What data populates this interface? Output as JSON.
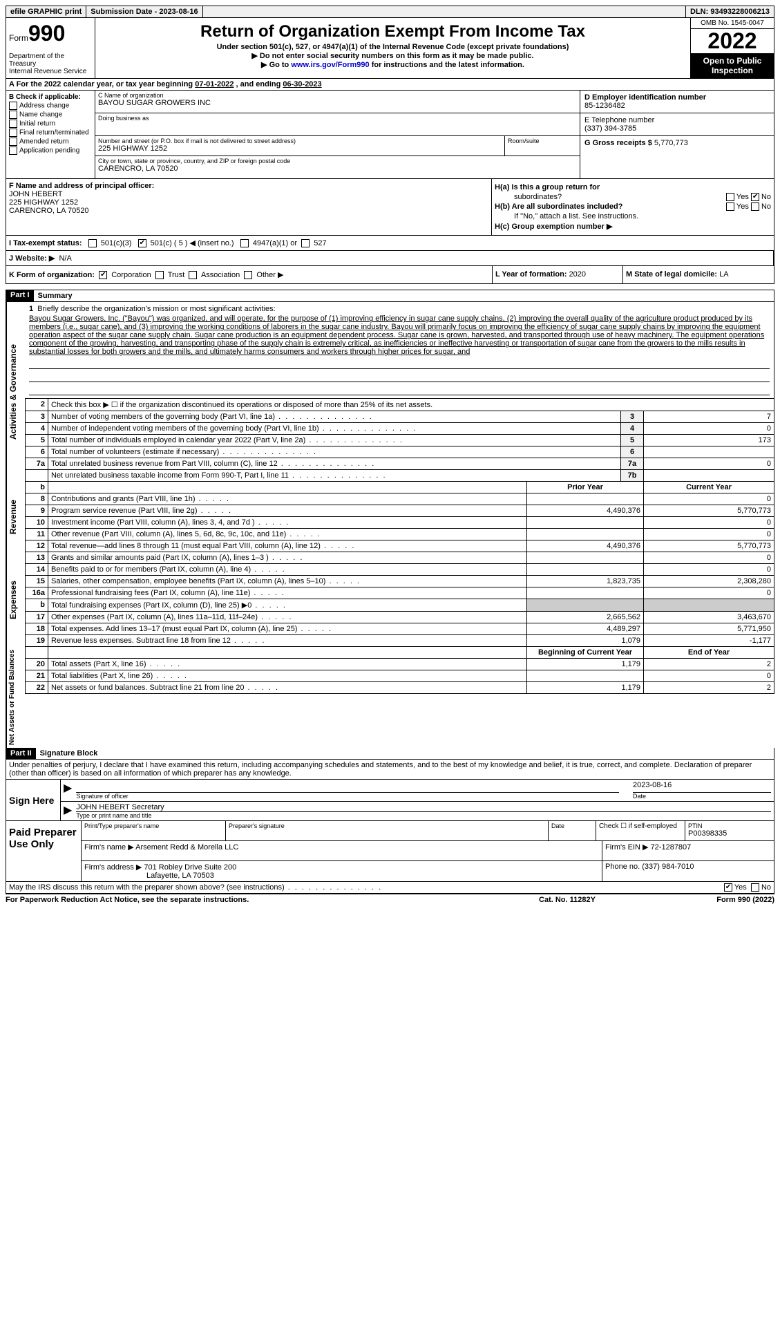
{
  "topbar": {
    "efile": "efile GRAPHIC print",
    "submission_label": "Submission Date - ",
    "submission_date": "2023-08-16",
    "dln_label": "DLN: ",
    "dln": "93493228006213"
  },
  "header": {
    "form_prefix": "Form",
    "form_number": "990",
    "dept": "Department of the Treasury\nInternal Revenue Service",
    "title": "Return of Organization Exempt From Income Tax",
    "subtitle": "Under section 501(c), 527, or 4947(a)(1) of the Internal Revenue Code (except private foundations)",
    "note1": "▶ Do not enter social security numbers on this form as it may be made public.",
    "note2_pre": "▶ Go to ",
    "note2_link": "www.irs.gov/Form990",
    "note2_post": " for instructions and the latest information.",
    "omb": "OMB No. 1545-0047",
    "year": "2022",
    "inspection": "Open to Public Inspection"
  },
  "row_a": {
    "prefix": "A For the 2022 calendar year, or tax year beginning ",
    "begin": "07-01-2022",
    "mid": " , and ending ",
    "end": "06-30-2023"
  },
  "box_b": {
    "title": "B Check if applicable:",
    "items": [
      "Address change",
      "Name change",
      "Initial return",
      "Final return/terminated",
      "Amended return",
      "Application pending"
    ]
  },
  "box_c": {
    "label_name": "C Name of organization",
    "org_name": "BAYOU SUGAR GROWERS INC",
    "label_dba": "Doing business as",
    "dba": "",
    "label_street": "Number and street (or P.O. box if mail is not delivered to street address)",
    "street": "225 HIGHWAY 1252",
    "label_room": "Room/suite",
    "label_city": "City or town, state or province, country, and ZIP or foreign postal code",
    "city": "CARENCRO, LA  70520"
  },
  "box_d": {
    "label": "D Employer identification number",
    "ein": "85-1236482"
  },
  "box_e": {
    "label": "E Telephone number",
    "phone": "(337) 394-3785"
  },
  "box_g": {
    "label": "G Gross receipts $ ",
    "amount": "5,770,773"
  },
  "box_f": {
    "label": "F  Name and address of principal officer:",
    "name": "JOHN HEBERT",
    "street": "225 HIGHWAY 1252",
    "city": "CARENCRO, LA  70520"
  },
  "box_h": {
    "ha_label": "H(a)  Is this a group return for",
    "ha_sub": "subordinates?",
    "hb_label": "H(b)  Are all subordinates included?",
    "hb_note": "If \"No,\" attach a list. See instructions.",
    "hc_label": "H(c)  Group exemption number ▶",
    "yes": "Yes",
    "no": "No"
  },
  "row_i": {
    "label": "I  Tax-exempt status:",
    "opt1": "501(c)(3)",
    "opt2": "501(c) ( 5 ) ◀ (insert no.)",
    "opt3": "4947(a)(1) or",
    "opt4": "527"
  },
  "row_j": {
    "label": "J  Website: ▶",
    "value": "N/A"
  },
  "row_k": {
    "label": "K Form of organization:",
    "opts": [
      "Corporation",
      "Trust",
      "Association",
      "Other ▶"
    ],
    "l_label": "L Year of formation: ",
    "l_value": "2020",
    "m_label": "M State of legal domicile: ",
    "m_value": "LA"
  },
  "part1": {
    "header": "Part I",
    "title": "Summary",
    "side_activities": "Activities & Governance",
    "side_revenue": "Revenue",
    "side_expenses": "Expenses",
    "side_netassets": "Net Assets or Fund Balances",
    "line1_label": "Briefly describe the organization's mission or most significant activities:",
    "mission": "Bayou Sugar Growers, Inc. (\"Bayou\") was organized, and will operate, for the purpose of (1) improving efficiency in sugar cane supply chains, (2) improving the overall quality of the agriculture product produced by its members (i.e., sugar cane), and (3) improving the working conditions of laborers in the sugar cane industry. Bayou will primarily focus on improving the efficiency of sugar cane supply chains by improving the equipment operation aspect of the sugar cane supply chain. Sugar cane production is an equipment dependent process. Sugar cane is grown, harvested, and transported through use of heavy machinery. The equipment operations component of the growing, harvesting, and transporting phase of the supply chain is extremely critical, as inefficiencies or ineffective harvesting or transportation of sugar cane from the growers to the mills results in substantial losses for both growers and the mills, and ultimately harms consumers and workers through higher prices for sugar, and",
    "line2": "Check this box ▶ ☐ if the organization discontinued its operations or disposed of more than 25% of its net assets.",
    "lines_gov": [
      {
        "n": "3",
        "desc": "Number of voting members of the governing body (Part VI, line 1a)",
        "box": "3",
        "val": "7"
      },
      {
        "n": "4",
        "desc": "Number of independent voting members of the governing body (Part VI, line 1b)",
        "box": "4",
        "val": "0"
      },
      {
        "n": "5",
        "desc": "Total number of individuals employed in calendar year 2022 (Part V, line 2a)",
        "box": "5",
        "val": "173"
      },
      {
        "n": "6",
        "desc": "Total number of volunteers (estimate if necessary)",
        "box": "6",
        "val": ""
      },
      {
        "n": "7a",
        "desc": "Total unrelated business revenue from Part VIII, column (C), line 12",
        "box": "7a",
        "val": "0"
      },
      {
        "n": "",
        "desc": "Net unrelated business taxable income from Form 990-T, Part I, line 11",
        "box": "7b",
        "val": ""
      }
    ],
    "col_prior": "Prior Year",
    "col_current": "Current Year",
    "lines_rev": [
      {
        "n": "8",
        "desc": "Contributions and grants (Part VIII, line 1h)",
        "prior": "",
        "cur": "0"
      },
      {
        "n": "9",
        "desc": "Program service revenue (Part VIII, line 2g)",
        "prior": "4,490,376",
        "cur": "5,770,773"
      },
      {
        "n": "10",
        "desc": "Investment income (Part VIII, column (A), lines 3, 4, and 7d )",
        "prior": "",
        "cur": "0"
      },
      {
        "n": "11",
        "desc": "Other revenue (Part VIII, column (A), lines 5, 6d, 8c, 9c, 10c, and 11e)",
        "prior": "",
        "cur": "0"
      },
      {
        "n": "12",
        "desc": "Total revenue—add lines 8 through 11 (must equal Part VIII, column (A), line 12)",
        "prior": "4,490,376",
        "cur": "5,770,773"
      }
    ],
    "lines_exp": [
      {
        "n": "13",
        "desc": "Grants and similar amounts paid (Part IX, column (A), lines 1–3 )",
        "prior": "",
        "cur": "0"
      },
      {
        "n": "14",
        "desc": "Benefits paid to or for members (Part IX, column (A), line 4)",
        "prior": "",
        "cur": "0"
      },
      {
        "n": "15",
        "desc": "Salaries, other compensation, employee benefits (Part IX, column (A), lines 5–10)",
        "prior": "1,823,735",
        "cur": "2,308,280"
      },
      {
        "n": "16a",
        "desc": "Professional fundraising fees (Part IX, column (A), line 11e)",
        "prior": "",
        "cur": "0"
      },
      {
        "n": "b",
        "desc": "Total fundraising expenses (Part IX, column (D), line 25) ▶0",
        "prior": "GREY",
        "cur": "GREY"
      },
      {
        "n": "17",
        "desc": "Other expenses (Part IX, column (A), lines 11a–11d, 11f–24e)",
        "prior": "2,665,562",
        "cur": "3,463,670"
      },
      {
        "n": "18",
        "desc": "Total expenses. Add lines 13–17 (must equal Part IX, column (A), line 25)",
        "prior": "4,489,297",
        "cur": "5,771,950"
      },
      {
        "n": "19",
        "desc": "Revenue less expenses. Subtract line 18 from line 12",
        "prior": "1,079",
        "cur": "-1,177"
      }
    ],
    "col_begin": "Beginning of Current Year",
    "col_end": "End of Year",
    "lines_net": [
      {
        "n": "20",
        "desc": "Total assets (Part X, line 16)",
        "prior": "1,179",
        "cur": "2"
      },
      {
        "n": "21",
        "desc": "Total liabilities (Part X, line 26)",
        "prior": "",
        "cur": "0"
      },
      {
        "n": "22",
        "desc": "Net assets or fund balances. Subtract line 21 from line 20",
        "prior": "1,179",
        "cur": "2"
      }
    ]
  },
  "part2": {
    "header": "Part II",
    "title": "Signature Block",
    "declaration": "Under penalties of perjury, I declare that I have examined this return, including accompanying schedules and statements, and to the best of my knowledge and belief, it is true, correct, and complete. Declaration of preparer (other than officer) is based on all information of which preparer has any knowledge.",
    "sign_here": "Sign Here",
    "sig_officer": "Signature of officer",
    "sig_date_label": "Date",
    "sig_date": "2023-08-16",
    "officer_name": "JOHN HEBERT Secretary",
    "type_name": "Type or print name and title",
    "paid_prep": "Paid Preparer Use Only",
    "prep_name_label": "Print/Type preparer's name",
    "prep_sig_label": "Preparer's signature",
    "date_label": "Date",
    "check_self": "Check ☐ if self-employed",
    "ptin_label": "PTIN",
    "ptin": "P00398335",
    "firm_name_label": "Firm's name    ▶ ",
    "firm_name": "Arsement Redd & Morella LLC",
    "firm_ein_label": "Firm's EIN ▶ ",
    "firm_ein": "72-1287807",
    "firm_addr_label": "Firm's address ▶ ",
    "firm_addr1": "701 Robley Drive Suite 200",
    "firm_addr2": "Lafayette, LA  70503",
    "phone_label": "Phone no. ",
    "phone": "(337) 984-7010",
    "discuss": "May the IRS discuss this return with the preparer shown above? (see instructions)",
    "yes": "Yes",
    "no": "No"
  },
  "footer": {
    "left": "For Paperwork Reduction Act Notice, see the separate instructions.",
    "mid": "Cat. No. 11282Y",
    "right": "Form 990 (2022)"
  }
}
